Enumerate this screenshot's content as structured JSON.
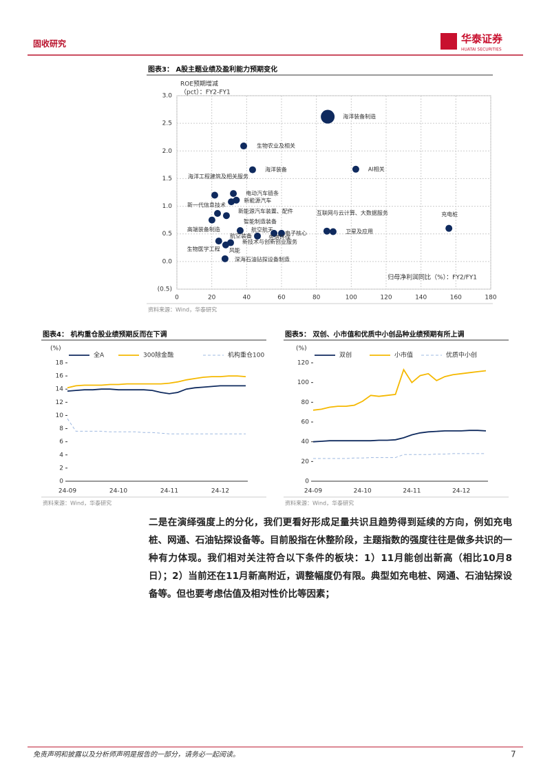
{
  "header": {
    "section": "固收研究",
    "logo_cn": "华泰证券",
    "logo_en": "HUATAI SECURITIES"
  },
  "chart_data": [
    {
      "type": "scatter",
      "title": "图表3： A股主题业绩及盈利能力预期变化",
      "ylabel": [
        "ROE预期增减",
        "（pct）：FY2-FY1"
      ],
      "xlabel": "归母净利润同比（%）：FY2/FY1",
      "color": "#0f2a5e",
      "grid": true,
      "labels": [
        "海洋装备制造",
        "生物农业及相关",
        "海洋装备",
        "AI相关",
        "海洋工程建筑及相关服务",
        "电动汽车链条",
        "新能源汽车",
        "新一代信息技术",
        "新能源汽车装置、配件",
        "智能制造装备",
        "高端装备制造",
        "航空航天",
        "航空装备",
        "电子核心",
        "先进环保",
        "新技术与创新创业服务",
        "生物医学工程",
        "风能",
        "深海石油钻探设备制造",
        "互联网与云计算、大数据服务",
        "卫星及应用",
        "充电桩"
      ],
      "x": [
        86.5,
        38.3,
        43.4,
        102.6,
        21.7,
        32.4,
        34.1,
        31.2,
        28.4,
        23.3,
        20.1,
        36.3,
        46.2,
        60.0,
        55.7,
        30.8,
        24.0,
        28.0,
        27.6,
        86.0,
        89.6,
        156.0
      ],
      "values": [
        2.62,
        2.09,
        1.66,
        1.67,
        1.2,
        1.23,
        1.11,
        1.08,
        0.83,
        0.87,
        0.75,
        0.56,
        0.46,
        0.51,
        0.51,
        0.34,
        0.37,
        0.3,
        0.05,
        0.55,
        0.54,
        0.6
      ],
      "sizes": [
        4,
        1,
        1,
        1,
        1,
        1,
        1,
        1,
        1,
        1,
        1,
        1,
        1,
        1,
        1,
        1,
        1,
        1,
        1,
        1,
        1,
        1
      ],
      "xlim": [
        0,
        180
      ],
      "xticks": [
        0,
        20,
        40,
        60,
        80,
        100,
        120,
        140,
        160,
        180
      ],
      "ylim": [
        -0.5,
        3
      ],
      "yticks": [
        {
          "value": 3,
          "label": "3.0"
        },
        {
          "value": 2.5,
          "label": "2.5"
        },
        {
          "value": 2,
          "label": "2.0"
        },
        {
          "value": 1.5,
          "label": "1.5"
        },
        {
          "value": 1,
          "label": "1.0"
        },
        {
          "value": 0.5,
          "label": "0.5"
        },
        {
          "value": 0,
          "label": "0.0"
        },
        {
          "value": -0.5,
          "label": "(0.5)"
        }
      ],
      "source": "资料来源：Wind，华泰研究"
    },
    {
      "type": "line",
      "title": "图表4： 机构重仓股业绩预期反而在下调",
      "unit": "(%)",
      "categories": [
        "24-09",
        null,
        null,
        null,
        null,
        null,
        "24-10",
        null,
        null,
        null,
        null,
        null,
        "24-11",
        null,
        null,
        null,
        null,
        null,
        "24-12",
        null,
        null,
        null
      ],
      "series": [
        {
          "name": "全A",
          "color": "#0f2a5e",
          "dash": false,
          "values": [
            13.7,
            13.8,
            13.9,
            13.9,
            14,
            14,
            13.9,
            13.9,
            13.9,
            13.9,
            13.8,
            13.5,
            13.3,
            13.5,
            14,
            14.2,
            14.3,
            14.4,
            14.5,
            14.5,
            14.5,
            14.5
          ]
        },
        {
          "name": "300除金融",
          "color": "#f5b800",
          "dash": false,
          "values": [
            14.2,
            14.5,
            14.6,
            14.6,
            14.6,
            14.7,
            14.7,
            14.8,
            14.8,
            14.8,
            14.8,
            14.8,
            14.9,
            15.1,
            15.4,
            15.6,
            15.8,
            15.9,
            15.9,
            16,
            16,
            15.9
          ]
        },
        {
          "name": "机构重仓100",
          "color": "#9db8e0",
          "dash": true,
          "values": [
            9.5,
            7.6,
            7.6,
            7.6,
            7.6,
            7.5,
            7.5,
            7.5,
            7.5,
            7.4,
            7.4,
            7.3,
            7.2,
            7.2,
            7.2,
            7.2,
            7.2,
            7.2,
            7.2,
            7.2,
            7.2,
            7.2
          ]
        }
      ],
      "ylim": [
        0,
        18
      ],
      "yticks": [
        0,
        2,
        4,
        6,
        8,
        10,
        12,
        14,
        16,
        18
      ],
      "source": "资料来源：Wind，华泰研究"
    },
    {
      "type": "line",
      "title": "图表5： 双创、小市值和优质中小创品种业绩预期有所上调",
      "unit": "(%)",
      "categories": [
        "24-09",
        null,
        null,
        null,
        null,
        null,
        "24-10",
        null,
        null,
        null,
        null,
        null,
        "24-11",
        null,
        null,
        null,
        null,
        null,
        "24-12",
        null,
        null,
        null
      ],
      "series": [
        {
          "name": "双创",
          "color": "#0f2a5e",
          "dash": false,
          "values": [
            40,
            40.5,
            41,
            41,
            41,
            41,
            41,
            41,
            41.5,
            41.5,
            42,
            44,
            47,
            49,
            50,
            50.5,
            51,
            51,
            51,
            51.5,
            51.5,
            51
          ]
        },
        {
          "name": "小市值",
          "color": "#f5b800",
          "dash": false,
          "values": [
            72,
            73,
            75,
            76,
            76,
            77,
            81,
            87,
            86,
            87,
            88,
            113,
            100,
            107,
            109,
            102,
            106,
            108,
            109,
            110,
            111,
            112
          ]
        },
        {
          "name": "优质中小创",
          "color": "#9db8e0",
          "dash": true,
          "values": [
            23,
            23,
            23,
            23,
            23,
            23.5,
            23.5,
            24,
            24,
            24,
            24,
            27,
            27,
            27,
            27,
            27.5,
            27.5,
            28,
            28,
            28,
            28,
            28
          ]
        }
      ],
      "ylim": [
        0,
        120
      ],
      "yticks": [
        0,
        20,
        40,
        60,
        80,
        100,
        120
      ],
      "source": "资料来源：Wind，华泰研究"
    }
  ],
  "body": "二是在演绎强度上的分化，我们更看好形成足量共识且趋势得到延续的方向，例如充电桩、网通、石油钻探设备等。目前股指在休整阶段，主题指数的强度往往是做多共识的一种有力体现。我们相对关注符合以下条件的板块：1）11月能创出新高（相比10月8日）；2）当前还在11月新高附近，调整幅度仍有限。典型如充电桩、网通、石油钻探设备等。但也要考虑估值及相对性价比等因素；",
  "footer": {
    "disclaimer": "免责声明和披露以及分析师声明是报告的一部分，请务必一起阅读。",
    "page": "7"
  }
}
